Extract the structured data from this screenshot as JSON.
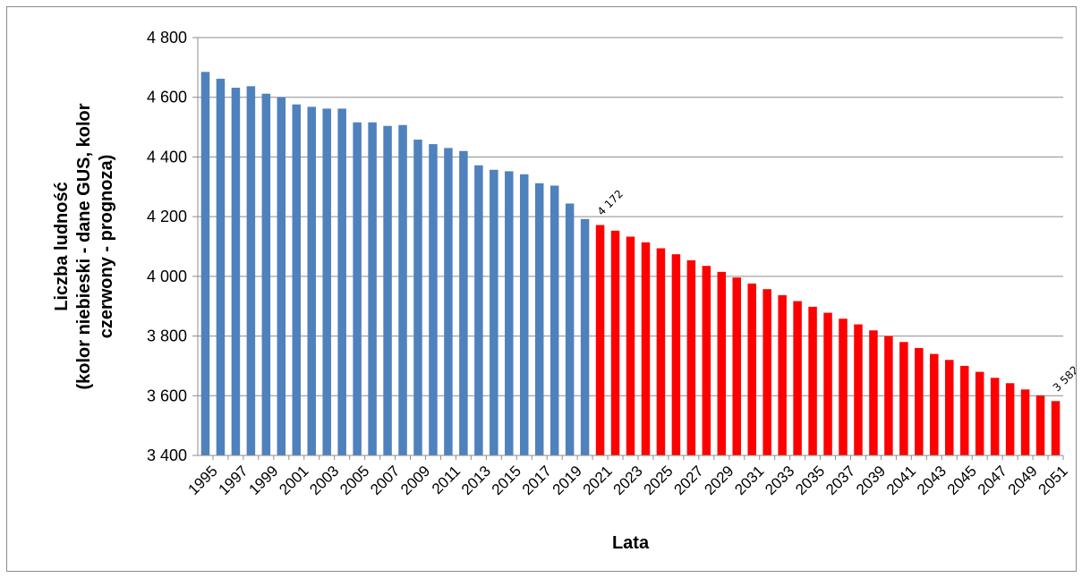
{
  "chart_data": {
    "type": "bar",
    "title": "",
    "xlabel": "Lata",
    "ylabel_lines": [
      "Liczba ludność",
      "(kolor niebieski - dane GUS, kolor",
      "czerwony - prognoza)"
    ],
    "ylim": [
      3400,
      4800
    ],
    "yticks": [
      3400,
      3600,
      3800,
      4000,
      4200,
      4400,
      4600,
      4800
    ],
    "ytick_labels": [
      "3 400",
      "3 600",
      "3 800",
      "4 000",
      "4 200",
      "4 400",
      "4 600",
      "4 800"
    ],
    "grid": true,
    "legend": "none",
    "categories": [
      1995,
      1996,
      1997,
      1998,
      1999,
      2000,
      2001,
      2002,
      2003,
      2004,
      2005,
      2006,
      2007,
      2008,
      2009,
      2010,
      2011,
      2012,
      2013,
      2014,
      2015,
      2016,
      2017,
      2018,
      2019,
      2020,
      2021,
      2022,
      2023,
      2024,
      2025,
      2026,
      2027,
      2028,
      2029,
      2030,
      2031,
      2032,
      2033,
      2034,
      2035,
      2036,
      2037,
      2038,
      2039,
      2040,
      2041,
      2042,
      2043,
      2044,
      2045,
      2046,
      2047,
      2048,
      2049,
      2050,
      2051
    ],
    "xtick_labels": [
      "1995",
      "1997",
      "1999",
      "2001",
      "2003",
      "2005",
      "2007",
      "2009",
      "2011",
      "2013",
      "2015",
      "2017",
      "2019",
      "2021",
      "2023",
      "2025",
      "2027",
      "2029",
      "2031",
      "2033",
      "2035",
      "2037",
      "2039",
      "2041",
      "2043",
      "2045",
      "2047",
      "2049",
      "2051"
    ],
    "values": [
      4685,
      4662,
      4632,
      4637,
      4612,
      4600,
      4576,
      4568,
      4562,
      4562,
      4516,
      4516,
      4504,
      4507,
      4458,
      4443,
      4430,
      4420,
      4372,
      4357,
      4352,
      4342,
      4312,
      4304,
      4244,
      4192,
      4172,
      4153,
      4133,
      4114,
      4094,
      4074,
      4054,
      4035,
      4015,
      3996,
      3976,
      3957,
      3937,
      3917,
      3898,
      3878,
      3858,
      3839,
      3819,
      3800,
      3780,
      3760,
      3740,
      3720,
      3700,
      3680,
      3660,
      3642,
      3621,
      3601,
      3582
    ],
    "series": [
      {
        "kind": "dane GUS",
        "color": "#4f81bd",
        "from": 1995,
        "to": 2020
      },
      {
        "kind": "prognoza",
        "color": "#ff0000",
        "from": 2021,
        "to": 2051
      }
    ],
    "data_labels": [
      {
        "year": 2021,
        "text": "4 172"
      },
      {
        "year": 2051,
        "text": "3 582"
      }
    ]
  }
}
